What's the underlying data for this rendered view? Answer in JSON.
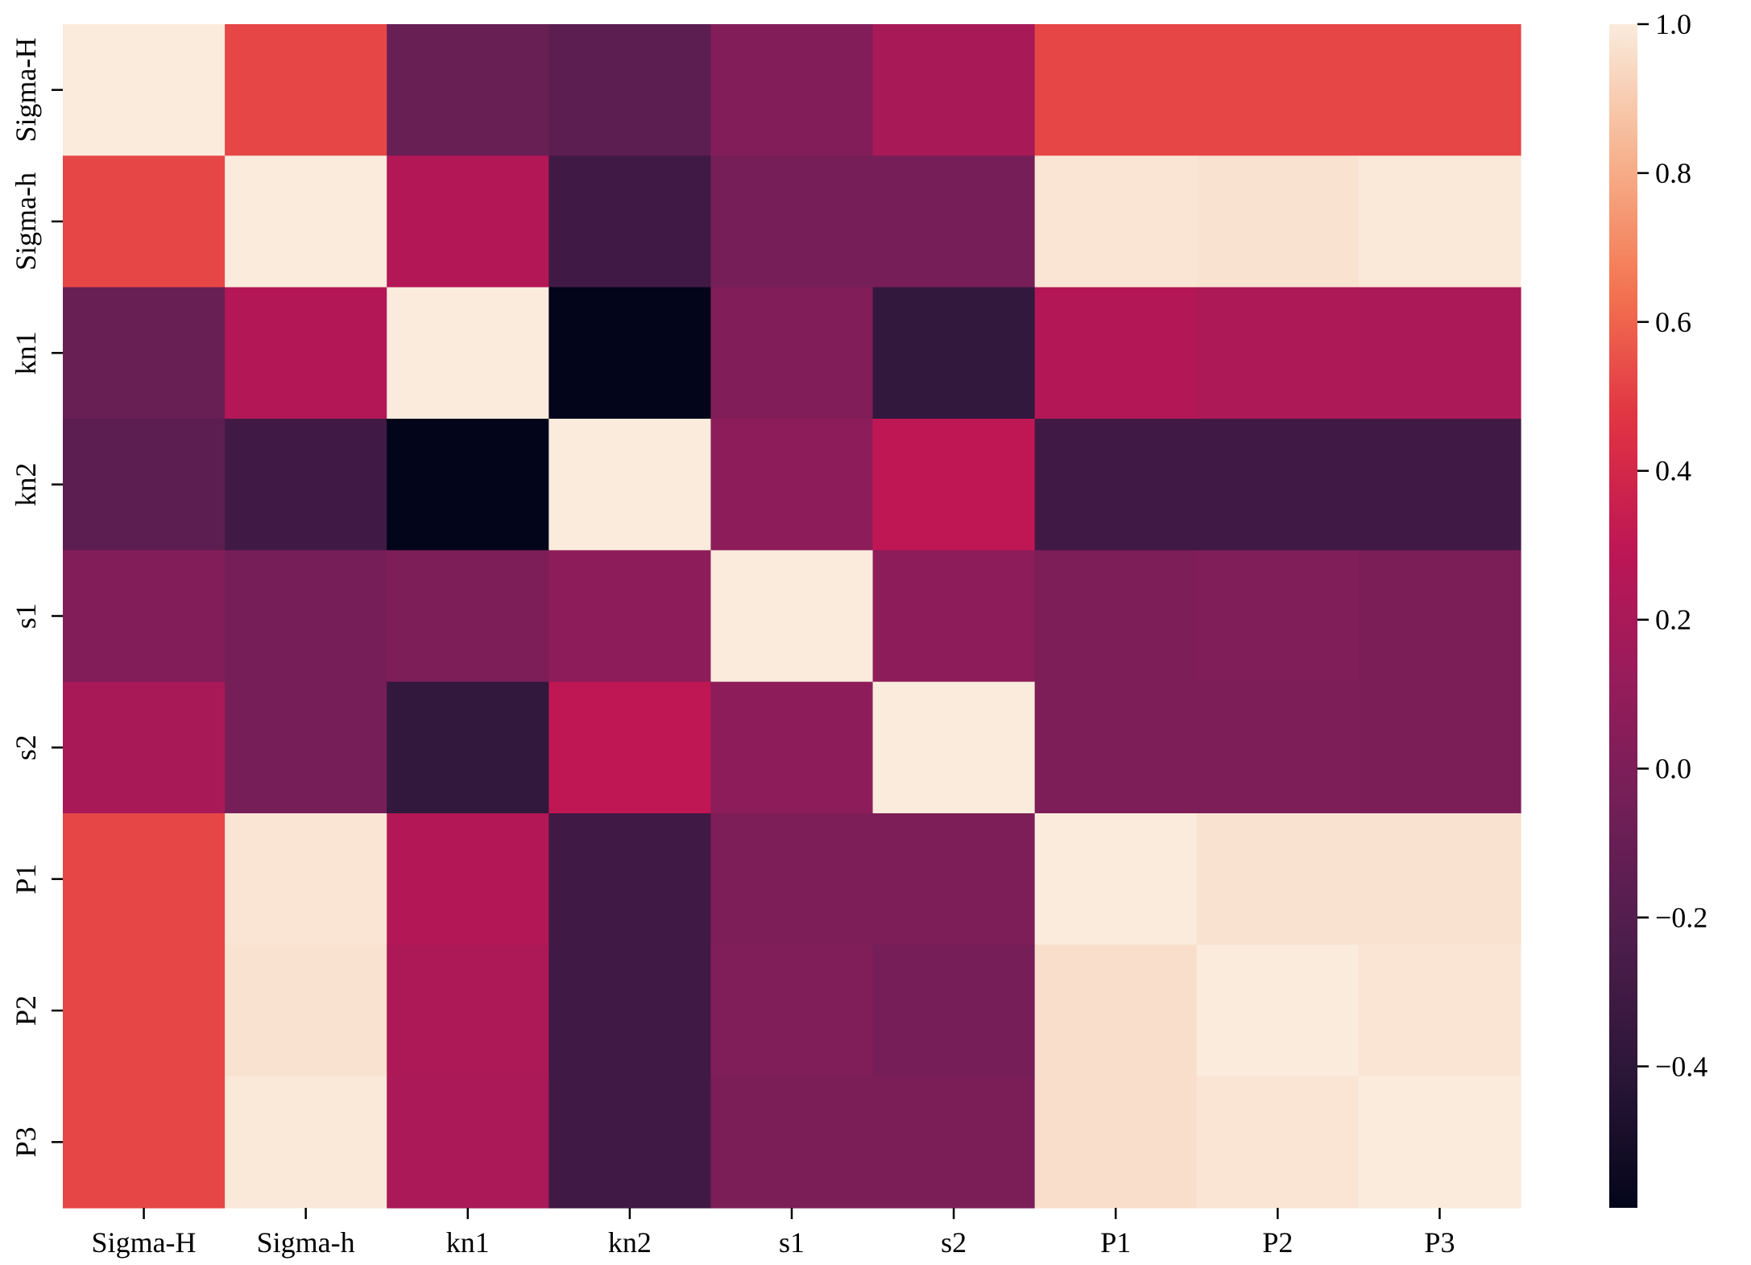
{
  "chart_data": {
    "type": "heatmap",
    "title": "",
    "xlabel": "",
    "ylabel": "",
    "x_labels": [
      "Sigma-H",
      "Sigma-h",
      "kn1",
      "kn2",
      "s1",
      "s2",
      "P1",
      "P2",
      "P3"
    ],
    "y_labels": [
      "Sigma-H",
      "Sigma-h",
      "kn1",
      "kn2",
      "s1",
      "s2",
      "P1",
      "P2",
      "P3"
    ],
    "values": [
      [
        1.0,
        0.52,
        -0.1,
        -0.16,
        0.03,
        0.2,
        0.52,
        0.52,
        0.52
      ],
      [
        0.52,
        1.0,
        0.25,
        -0.3,
        -0.03,
        -0.03,
        0.98,
        0.97,
        0.99
      ],
      [
        -0.1,
        0.25,
        1.0,
        -0.59,
        0.02,
        -0.37,
        0.25,
        0.22,
        0.21
      ],
      [
        -0.16,
        -0.3,
        -0.59,
        1.0,
        0.07,
        0.3,
        -0.3,
        -0.3,
        -0.3
      ],
      [
        0.03,
        -0.03,
        0.0,
        0.07,
        1.0,
        0.07,
        0.0,
        0.01,
        -0.01
      ],
      [
        0.2,
        -0.03,
        -0.37,
        0.3,
        0.07,
        1.0,
        0.0,
        0.0,
        -0.01
      ],
      [
        0.52,
        0.98,
        0.25,
        -0.3,
        0.0,
        0.0,
        1.0,
        0.97,
        0.97
      ],
      [
        0.52,
        0.97,
        0.22,
        -0.3,
        0.01,
        -0.03,
        0.96,
        1.0,
        0.98
      ],
      [
        0.52,
        0.99,
        0.21,
        -0.3,
        -0.01,
        -0.01,
        0.96,
        0.98,
        1.0
      ]
    ],
    "colorbar": {
      "min": -0.59,
      "max": 1.0,
      "ticks": [
        1.0,
        0.8,
        0.6,
        0.4,
        0.2,
        0.0,
        -0.2,
        -0.4
      ],
      "tick_labels": [
        "1.0",
        "0.8",
        "0.6",
        "0.4",
        "0.2",
        "0.0",
        "−0.2",
        "−0.4"
      ]
    },
    "colormap": "rocket",
    "colormap_stops": [
      "#03051a",
      "#2a1637",
      "#4c1d4b",
      "#701f57",
      "#961c5b",
      "#bd1655",
      "#e13342",
      "#f37651",
      "#f6b48f",
      "#faebdd"
    ]
  }
}
